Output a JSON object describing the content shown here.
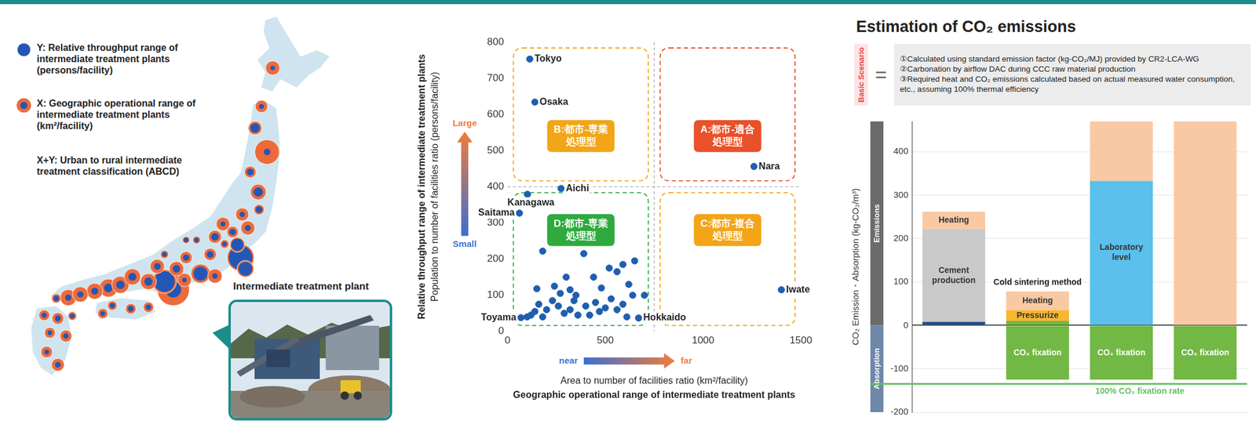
{
  "map_panel": {
    "legend": [
      {
        "text": "Y: Relative throughput range of intermediate treatment plants (persons/facility)",
        "colors": [
          "#2457b5"
        ]
      },
      {
        "text": "X: Geographic operational range of intermediate treatment plants (km²/facility)",
        "colors": [
          "#ee6a3a",
          "#2457b5"
        ]
      },
      {
        "text": "X+Y: Urban to rural intermediate treatment classification (ABCD)"
      }
    ],
    "photo_caption": "Intermediate treatment plant"
  },
  "chart_data": [
    {
      "type": "scatter",
      "y_title": "Relative throughput range of intermediate treatment plants",
      "y_label": "Population to number of facilities ratio (persons/facility)",
      "x_label": "Area to number of facilities ratio (km²/facility)",
      "x_title": "Geographic operational range of intermediate treatment plants",
      "xlim": [
        0,
        1500
      ],
      "xticks": [
        0,
        500,
        1000,
        1500
      ],
      "ylim": [
        0,
        800
      ],
      "yticks": [
        0,
        100,
        200,
        300,
        400,
        500,
        600,
        700,
        800
      ],
      "grid": false,
      "color": "#1f5fb0",
      "marker": "circle",
      "x": [
        114,
        140,
        102,
        274,
        61,
        1260,
        1400,
        670,
        69,
        180,
        390,
        150,
        240,
        270,
        300,
        320,
        350,
        440,
        480,
        520,
        560,
        590,
        650,
        620,
        640,
        700,
        160,
        200,
        230,
        260,
        290,
        320,
        340,
        360,
        400,
        420,
        450,
        470,
        500,
        530,
        560,
        590,
        610,
        120,
        180,
        140,
        100
      ],
      "y": [
        753,
        634,
        379,
        395,
        327,
        456,
        115,
        37,
        38,
        222,
        215,
        118,
        125,
        105,
        150,
        115,
        100,
        150,
        120,
        175,
        165,
        185,
        195,
        130,
        100,
        100,
        75,
        60,
        85,
        70,
        50,
        60,
        85,
        45,
        70,
        45,
        80,
        55,
        65,
        90,
        60,
        75,
        40,
        45,
        40,
        55,
        40
      ],
      "point_labels": [
        "Tokyo",
        "Osaka",
        "Kanagawa",
        "Aichi",
        "Saitama",
        "Nara",
        "Iwate",
        "Hokkaido",
        "Toyama",
        null,
        null,
        null,
        null,
        null,
        null,
        null,
        null,
        null,
        null,
        null,
        null,
        null,
        null,
        null,
        null,
        null,
        null,
        null,
        null,
        null,
        null,
        null,
        null,
        null,
        null,
        null,
        null,
        null,
        null,
        null,
        null,
        null,
        null,
        null,
        null,
        null,
        null
      ],
      "dividers": {
        "x": 750,
        "y": 400
      },
      "quadrants": [
        {
          "label": "A:都市-適合処理型",
          "color": "#e8512a",
          "position": "upper right"
        },
        {
          "label": "B:都市-専業処理型",
          "color": "#f2a516",
          "position": "upper left"
        },
        {
          "label": "C:都市-複合処理型",
          "color": "#f2a516",
          "position": "lower right"
        },
        {
          "label": "D:都市-専業処理型",
          "color": "#2eaa3f",
          "position": "lower left"
        }
      ],
      "y_arrow": {
        "low": "Small",
        "high": "Large",
        "colors": [
          "#3b6fd1",
          "#f07c3a"
        ]
      },
      "x_arrow": {
        "low": "near",
        "high": "far",
        "colors": [
          "#3b6fd1",
          "#f07c3a"
        ]
      }
    },
    {
      "type": "bar",
      "title": "Estimation of CO₂ emissions",
      "scenario": {
        "label": "Basic Scenario",
        "operator": "=",
        "notes": [
          "①Calculated using standard emission factor (kg-CO₂/MJ) provided by CR2-LCA-WG",
          "②Carbonation by airflow DAC during CCC raw material production",
          "③Required heat and CO₂ emissions calculated based on actual measured water consumption, etc., assuming 100% thermal efficiency"
        ]
      },
      "y_title": "CO₂ Emission・Absorption (kg-CO₂/m³)",
      "ylim": [
        -200,
        470
      ],
      "yticks": [
        -200,
        -100,
        0,
        100,
        200,
        300,
        400
      ],
      "grid": true,
      "stacked": true,
      "tick_labels": "y",
      "categories": [
        null,
        null,
        null,
        null
      ],
      "bar_titles": [
        null,
        "Cold sintering method",
        null,
        null
      ],
      "y_bands": {
        "positive": "Emissions",
        "negative": "Absorption"
      },
      "reference_line": {
        "value": -135,
        "label": "100% CO₂ fixation rate",
        "color": "#62c060"
      },
      "series": [
        {
          "color": "#1f4e8c",
          "values": [
            8,
            null,
            null,
            null
          ]
        },
        {
          "color": "#c9c9c9",
          "values": [
            214,
            null,
            null,
            null
          ],
          "segment_labels": [
            "Cement production",
            null,
            null,
            null
          ]
        },
        {
          "color": "#72b844",
          "values": [
            null,
            10,
            null,
            null
          ]
        },
        {
          "color": "#f6b731",
          "values": [
            null,
            25,
            null,
            null
          ],
          "segment_labels": [
            null,
            "Pressurize",
            null,
            null
          ]
        },
        {
          "color": "#5bc0eb",
          "values": [
            null,
            null,
            333,
            null
          ],
          "segment_labels": [
            null,
            null,
            "Laboratory level",
            null
          ]
        },
        {
          "color": "#f9c9a4",
          "values": [
            40,
            43,
            137,
            470
          ],
          "segment_labels": [
            "Heating",
            "Heating",
            null,
            null
          ]
        },
        {
          "color": "#72b844",
          "values": [
            null,
            -125,
            -125,
            -125
          ],
          "segment_labels": [
            null,
            "CO₂ fixation",
            "CO₂ fixation",
            "CO₂ fixation"
          ]
        }
      ]
    }
  ]
}
